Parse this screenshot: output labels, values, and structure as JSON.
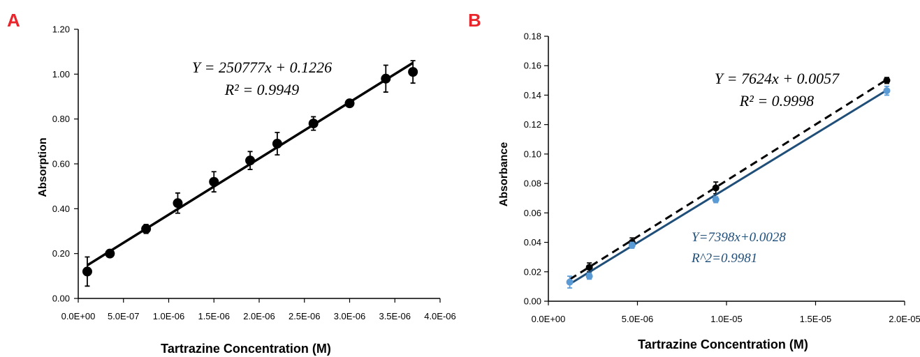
{
  "colors": {
    "black": "#000000",
    "blue_line": "#1f4e79",
    "blue_marker": "#5b9bd5",
    "panel_letter": "#e8262b"
  },
  "chart_data": [
    {
      "panel": "A",
      "type": "scatter",
      "xlabel": "Tartrazine Concentration (M)",
      "ylabel": "Absorption",
      "xlim": [
        0,
        4e-06
      ],
      "ylim": [
        0,
        1.2
      ],
      "xticks": [
        0,
        5e-07,
        1e-06,
        1.5e-06,
        2e-06,
        2.5e-06,
        3e-06,
        3.5e-06,
        4e-06
      ],
      "xtick_labels": [
        "0.0E+00",
        "5.0E-07",
        "1.0E-06",
        "1.5E-06",
        "2.0E-06",
        "2.5E-06",
        "3.0E-06",
        "3.5E-06",
        "4.0E-06"
      ],
      "yticks": [
        0,
        0.2,
        0.4,
        0.6,
        0.8,
        1.0,
        1.2
      ],
      "ytick_labels": [
        "0.00",
        "0.20",
        "0.40",
        "0.60",
        "0.80",
        "1.00",
        "1.20"
      ],
      "series": [
        {
          "color": "#000000",
          "x": [
            1e-07,
            3.5e-07,
            7.5e-07,
            1.1e-06,
            1.5e-06,
            1.9e-06,
            2.2e-06,
            2.6e-06,
            3e-06,
            3.4e-06,
            3.7e-06
          ],
          "y": [
            0.12,
            0.2,
            0.31,
            0.425,
            0.52,
            0.615,
            0.69,
            0.78,
            0.87,
            0.98,
            1.01
          ],
          "err": [
            0.065,
            0.012,
            0.02,
            0.045,
            0.045,
            0.04,
            0.05,
            0.03,
            0.012,
            0.06,
            0.05
          ],
          "fit": {
            "slope": 250777,
            "intercept": 0.1226,
            "x_range": [
              1e-07,
              3.7e-06
            ],
            "dashed": false
          }
        }
      ],
      "annotations": [
        {
          "line1": "Y = 250777x + 0.1226",
          "line2": "R² = 0.9949"
        }
      ]
    },
    {
      "panel": "B",
      "type": "scatter",
      "xlabel": "Tartrazine Concentration (M)",
      "ylabel": "Absorbance",
      "xlim": [
        0,
        2e-05
      ],
      "ylim": [
        0,
        0.18
      ],
      "xticks": [
        0,
        5e-06,
        1e-05,
        1.5e-05,
        2e-05
      ],
      "xtick_labels": [
        "0.0E+00",
        "5.0E-06",
        "1.0E-05",
        "1.5E-05",
        "2.0E-05"
      ],
      "yticks": [
        0,
        0.02,
        0.04,
        0.06,
        0.08,
        0.1,
        0.12,
        0.14,
        0.16,
        0.18
      ],
      "ytick_labels": [
        "0.00",
        "0.02",
        "0.04",
        "0.06",
        "0.08",
        "0.10",
        "0.12",
        "0.14",
        "0.16",
        "0.18"
      ],
      "series": [
        {
          "color": "#000000",
          "x": [
            2.3e-06,
            4.7e-06,
            9.4e-06,
            1.9e-05
          ],
          "y": [
            0.023,
            0.04,
            0.077,
            0.15
          ],
          "err": [
            0.003,
            0.003,
            0.004,
            0.002
          ],
          "fit": {
            "slope": 7624,
            "intercept": 0.0057,
            "x_range": [
              1.2e-06,
              1.9e-05
            ],
            "dashed": true
          }
        },
        {
          "color": "#5b9bd5",
          "x": [
            1.2e-06,
            2.3e-06,
            4.7e-06,
            9.4e-06,
            1.9e-05
          ],
          "y": [
            0.013,
            0.017,
            0.038,
            0.069,
            0.143
          ],
          "err": [
            0.004,
            0.002,
            0.002,
            0.002,
            0.003
          ],
          "fit": {
            "slope": 7398,
            "intercept": 0.0028,
            "x_range": [
              1.2e-06,
              1.9e-05
            ],
            "dashed": false,
            "line_color": "#1f4e79"
          }
        }
      ],
      "annotations": [
        {
          "line1": "Y = 7624x + 0.0057",
          "line2": "R² = 0.9998"
        },
        {
          "line1": "Y=7398x+0.0028",
          "line2": "R^2=0.9981"
        }
      ]
    }
  ]
}
